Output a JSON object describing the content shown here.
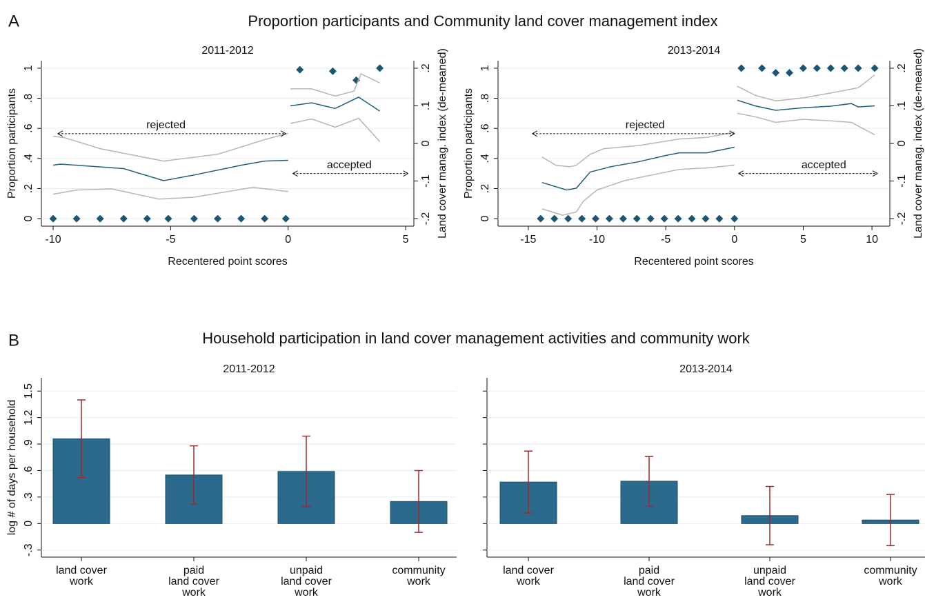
{
  "sections": [
    {
      "label": "A",
      "title": "Proportion participants and Community land cover management index"
    },
    {
      "label": "B",
      "title": "Household participation in land cover management activities and community work"
    }
  ],
  "chart_data": [
    {
      "type": "scatter",
      "title": "2011-2012",
      "x_label": "Recentered point scores",
      "y_label": "Proportion participants",
      "y2_label": "Land cover manag. index (de-meaned)",
      "xlim": [
        -10.5,
        5.35
      ],
      "xticks": [
        -10,
        -5,
        0,
        5
      ],
      "ylim": [
        -0.05,
        1.05
      ],
      "yticks": [
        0,
        {
          "value": 0.2,
          "label": ".2"
        },
        {
          "value": 0.4,
          "label": ".4"
        },
        {
          "value": 0.6,
          "label": ".6"
        },
        {
          "value": 0.8,
          "label": ".8"
        },
        1
      ],
      "y2lim": [
        -0.22,
        0.22
      ],
      "y2ticks": [
        {
          "value": -0.2,
          "label": "-.2"
        },
        {
          "value": -0.1,
          "label": "-.1"
        },
        0,
        {
          "value": 0.1,
          "label": ".1"
        },
        {
          "value": 0.2,
          "label": ".2"
        }
      ],
      "grid": true,
      "series": [
        {
          "mark": "point",
          "color": "#1a5574",
          "x": [
            -10,
            -9,
            -8,
            -7,
            -6,
            -5.1,
            -4,
            -3,
            -2,
            -1,
            -0.1,
            0.5,
            1.9,
            2.9,
            3.9
          ],
          "values": [
            0,
            0,
            0,
            0,
            0,
            0,
            0,
            0,
            0,
            0,
            0,
            0.99,
            0.98,
            0.92,
            1.0
          ]
        },
        {
          "mark": "line",
          "axis": "y2",
          "color": "#1f5f78",
          "x": [
            -10,
            -9.7,
            -7,
            -5.3,
            -4,
            -2,
            -1,
            0,
            null,
            0.1,
            1,
            2,
            3,
            3.9
          ],
          "values": [
            -0.058,
            -0.055,
            -0.067,
            -0.099,
            -0.084,
            -0.058,
            -0.047,
            -0.045,
            null,
            0.1,
            0.108,
            0.093,
            0.123,
            0.086
          ]
        },
        {
          "mark": "line",
          "axis": "y2",
          "color": "#b5b5b5",
          "x": [
            -10,
            -9.5,
            -8,
            -5.3,
            -3,
            -1,
            0,
            null,
            0.1,
            1,
            2,
            2.8,
            3.1,
            3.9
          ],
          "values": [
            0.019,
            0.015,
            -0.014,
            -0.047,
            -0.029,
            0.01,
            0.027,
            null,
            0.145,
            0.145,
            0.126,
            0.139,
            0.185,
            0.161
          ]
        },
        {
          "mark": "line",
          "axis": "y2",
          "color": "#b5b5b5",
          "x": [
            -10,
            -9,
            -7.5,
            -5.5,
            -4,
            -1.5,
            0,
            null,
            0.1,
            1,
            2,
            3,
            3.9
          ],
          "values": [
            -0.135,
            -0.124,
            -0.121,
            -0.148,
            -0.143,
            -0.117,
            -0.128,
            null,
            0.053,
            0.065,
            0.043,
            0.067,
            0.005
          ]
        }
      ],
      "annotations": [
        {
          "text": "rejected"
        },
        {
          "text": "accepted"
        }
      ]
    },
    {
      "type": "scatter",
      "title": "2013-2014",
      "x_label": "Recentered point scores",
      "y_label": "Proportion participants",
      "y2_label": "Land cover manag. index (de-meaned)",
      "xlim": [
        -17.2,
        11.3
      ],
      "xticks": [
        -15,
        -10,
        -5,
        0,
        5,
        10
      ],
      "ylim": [
        -0.05,
        1.05
      ],
      "yticks": [
        0,
        {
          "value": 0.2,
          "label": ".2"
        },
        {
          "value": 0.4,
          "label": ".4"
        },
        {
          "value": 0.6,
          "label": ".6"
        },
        {
          "value": 0.8,
          "label": ".8"
        },
        1
      ],
      "y2lim": [
        -0.22,
        0.22
      ],
      "y2ticks": [
        {
          "value": -0.2,
          "label": "-.2"
        },
        {
          "value": -0.1,
          "label": "-.1"
        },
        0,
        {
          "value": 0.1,
          "label": ".1"
        },
        {
          "value": 0.2,
          "label": ".2"
        }
      ],
      "grid": true,
      "series": [
        {
          "mark": "point",
          "color": "#1a5574",
          "x": [
            -14.1,
            -13.1,
            -12.1,
            -11.1,
            -10.1,
            -9.1,
            -8.1,
            -7.1,
            -6.1,
            -5.1,
            -4.1,
            -3.1,
            -2.1,
            -1.1,
            0,
            0.5,
            2,
            3,
            4,
            5,
            6,
            7,
            8,
            9,
            10.2
          ],
          "values": [
            0,
            0,
            0,
            0,
            0,
            0,
            0,
            0,
            0,
            0,
            0,
            0,
            0,
            0,
            0,
            1,
            1,
            0.97,
            0.97,
            1,
            1,
            1,
            1,
            1,
            1
          ]
        },
        {
          "mark": "line",
          "axis": "y2",
          "color": "#1f5f78",
          "x": [
            -14,
            -12.2,
            -11.5,
            -10.5,
            -9,
            -7,
            -5,
            -4,
            -2,
            0,
            null,
            0.2,
            1.5,
            3,
            5,
            7,
            8.5,
            9,
            10.2
          ],
          "values": [
            -0.104,
            -0.124,
            -0.119,
            -0.076,
            -0.062,
            -0.049,
            -0.032,
            -0.025,
            -0.025,
            -0.01,
            null,
            0.115,
            0.1,
            0.088,
            0.095,
            0.099,
            0.106,
            0.097,
            0.1
          ]
        },
        {
          "mark": "line",
          "axis": "y2",
          "color": "#b5b5b5",
          "x": [
            -14,
            -13,
            -12,
            -11.5,
            -10.5,
            -9.5,
            -7,
            -4,
            -2,
            0,
            null,
            0.2,
            1.5,
            3,
            5,
            7,
            9,
            10.2
          ],
          "values": [
            -0.036,
            -0.058,
            -0.062,
            -0.058,
            -0.029,
            -0.014,
            -0.006,
            0.012,
            0.016,
            0.03,
            null,
            0.152,
            0.128,
            0.113,
            0.121,
            0.134,
            0.148,
            0.182
          ]
        },
        {
          "mark": "line",
          "axis": "y2",
          "color": "#b5b5b5",
          "x": [
            -14,
            -12.5,
            -11.5,
            -11,
            -10,
            -8,
            -6,
            -4,
            -2,
            0,
            null,
            0.2,
            1.5,
            3,
            5,
            7,
            8.5,
            10.2
          ],
          "values": [
            -0.174,
            -0.191,
            -0.182,
            -0.154,
            -0.124,
            -0.099,
            -0.084,
            -0.069,
            -0.065,
            -0.058,
            null,
            0.08,
            0.071,
            0.056,
            0.064,
            0.06,
            0.056,
            0.023
          ]
        }
      ],
      "annotations": [
        {
          "text": "rejected"
        },
        {
          "text": "accepted"
        }
      ]
    },
    {
      "type": "bar",
      "title": "2011-2012",
      "y_label": "log # of days per household",
      "categories": [
        [
          "land cover",
          "work"
        ],
        [
          "paid",
          "land cover",
          "work"
        ],
        [
          "unpaid",
          "land cover",
          "work"
        ],
        [
          "community",
          "work"
        ]
      ],
      "values": [
        0.96,
        0.55,
        0.59,
        0.25
      ],
      "errors": [
        0.44,
        0.33,
        0.4,
        0.35
      ],
      "color": "#2b6a8c",
      "error_color": "#9e2a2b",
      "ylim": [
        -0.38,
        1.65
      ],
      "yticks": [
        {
          "value": -0.3,
          "label": "-.3"
        },
        0,
        {
          "value": 0.3,
          "label": ".3"
        },
        {
          "value": 0.6,
          "label": ".6"
        },
        {
          "value": 0.9,
          "label": ".9"
        },
        1.2,
        1.5
      ],
      "tick_labels": true,
      "grid": true
    },
    {
      "type": "bar",
      "title": "2013-2014",
      "categories": [
        [
          "land cover",
          "work"
        ],
        [
          "paid",
          "land cover",
          "work"
        ],
        [
          "unpaid",
          "land cover",
          "work"
        ],
        [
          "community",
          "work"
        ]
      ],
      "values": [
        0.47,
        0.48,
        0.09,
        0.04
      ],
      "errors": [
        0.35,
        0.28,
        0.33,
        0.29
      ],
      "color": "#2b6a8c",
      "error_color": "#9e2a2b",
      "ylim": [
        -0.38,
        1.65
      ],
      "yticks": [
        -0.3,
        0,
        0.3,
        0.6,
        0.9,
        1.2,
        1.5
      ],
      "tick_labels": false,
      "grid": true
    }
  ]
}
